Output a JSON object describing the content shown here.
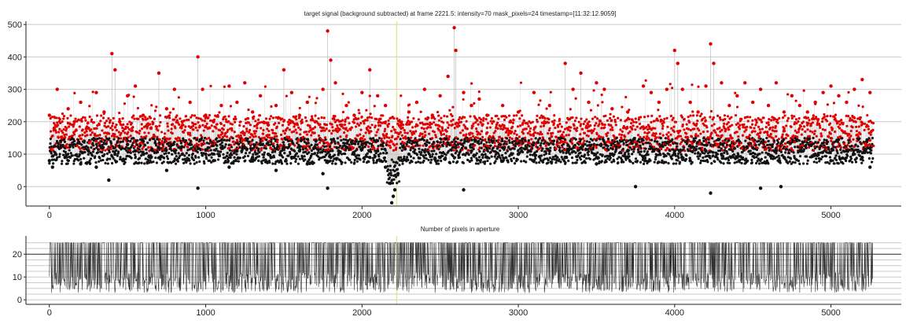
{
  "chart_data": [
    {
      "type": "scatter",
      "title": "target signal (background subtracted) at frame 2221.5: intensity=70 mask_pixels=24 timestamp=[11:32:12.9059]",
      "xlim": [
        -150,
        5450
      ],
      "ylim": [
        -60,
        510
      ],
      "xticks": [
        0,
        1000,
        2000,
        3000,
        4000,
        5000
      ],
      "yticks": [
        0,
        100,
        200,
        300,
        400,
        500
      ],
      "grid": "horizontal",
      "cursor_x": 2221.5,
      "colors": {
        "line": "#c4c4c4",
        "black_points": "#111111",
        "red_points": "#e00000",
        "cursor": "#e6e08a"
      },
      "series": [
        {
          "marker_color": "black",
          "points": [
            [
              0,
              80
            ],
            [
              20,
              60
            ],
            [
              40,
              100
            ],
            [
              70,
              120
            ],
            [
              100,
              90
            ],
            [
              150,
              130
            ],
            [
              200,
              70
            ],
            [
              250,
              110
            ],
            [
              300,
              60
            ],
            [
              340,
              120
            ],
            [
              380,
              20
            ],
            [
              420,
              100
            ],
            [
              470,
              80
            ],
            [
              500,
              130
            ],
            [
              550,
              110
            ],
            [
              600,
              140
            ],
            [
              650,
              90
            ],
            [
              700,
              120
            ],
            [
              750,
              50
            ],
            [
              800,
              110
            ],
            [
              850,
              100
            ],
            [
              900,
              130
            ],
            [
              950,
              -5
            ],
            [
              1000,
              100
            ],
            [
              1050,
              80
            ],
            [
              1100,
              120
            ],
            [
              1150,
              60
            ],
            [
              1200,
              110
            ],
            [
              1250,
              120
            ],
            [
              1300,
              90
            ],
            [
              1350,
              130
            ],
            [
              1400,
              100
            ],
            [
              1450,
              50
            ],
            [
              1500,
              120
            ],
            [
              1550,
              90
            ],
            [
              1600,
              110
            ],
            [
              1650,
              70
            ],
            [
              1700,
              120
            ],
            [
              1750,
              40
            ],
            [
              1780,
              -5
            ],
            [
              1800,
              90
            ],
            [
              1850,
              110
            ],
            [
              1900,
              120
            ],
            [
              1950,
              100
            ],
            [
              2000,
              130
            ],
            [
              2050,
              90
            ],
            [
              2100,
              110
            ],
            [
              2150,
              60
            ],
            [
              2180,
              10
            ],
            [
              2190,
              -50
            ],
            [
              2200,
              -30
            ],
            [
              2210,
              -10
            ],
            [
              2230,
              40
            ],
            [
              2260,
              80
            ],
            [
              2300,
              100
            ],
            [
              2400,
              110
            ],
            [
              2500,
              90
            ],
            [
              2600,
              120
            ],
            [
              2650,
              -10
            ],
            [
              2700,
              110
            ],
            [
              2800,
              90
            ],
            [
              2900,
              120
            ],
            [
              3000,
              100
            ],
            [
              3100,
              80
            ],
            [
              3200,
              110
            ],
            [
              3300,
              90
            ],
            [
              3400,
              120
            ],
            [
              3500,
              70
            ],
            [
              3600,
              100
            ],
            [
              3700,
              110
            ],
            [
              3750,
              0
            ],
            [
              3800,
              90
            ],
            [
              3900,
              110
            ],
            [
              4000,
              100
            ],
            [
              4100,
              80
            ],
            [
              4200,
              110
            ],
            [
              4230,
              -20
            ],
            [
              4300,
              100
            ],
            [
              4400,
              90
            ],
            [
              4500,
              120
            ],
            [
              4550,
              -5
            ],
            [
              4600,
              100
            ],
            [
              4650,
              110
            ],
            [
              4680,
              0
            ],
            [
              4700,
              90
            ],
            [
              4800,
              110
            ],
            [
              4900,
              100
            ],
            [
              5000,
              80
            ],
            [
              5100,
              110
            ],
            [
              5200,
              90
            ],
            [
              5250,
              60
            ]
          ]
        },
        {
          "marker_color": "red",
          "points": [
            [
              0,
              220
            ],
            [
              30,
              180
            ],
            [
              50,
              300
            ],
            [
              80,
              150
            ],
            [
              120,
              240
            ],
            [
              160,
              200
            ],
            [
              200,
              260
            ],
            [
              250,
              180
            ],
            [
              300,
              290
            ],
            [
              350,
              230
            ],
            [
              400,
              410
            ],
            [
              420,
              360
            ],
            [
              450,
              200
            ],
            [
              500,
              280
            ],
            [
              550,
              310
            ],
            [
              600,
              220
            ],
            [
              650,
              180
            ],
            [
              700,
              350
            ],
            [
              750,
              240
            ],
            [
              800,
              300
            ],
            [
              850,
              200
            ],
            [
              900,
              260
            ],
            [
              950,
              400
            ],
            [
              980,
              300
            ],
            [
              1000,
              220
            ],
            [
              1050,
              200
            ],
            [
              1100,
              250
            ],
            [
              1150,
              310
            ],
            [
              1200,
              260
            ],
            [
              1250,
              320
            ],
            [
              1300,
              230
            ],
            [
              1350,
              280
            ],
            [
              1400,
              190
            ],
            [
              1450,
              250
            ],
            [
              1500,
              360
            ],
            [
              1550,
              290
            ],
            [
              1600,
              220
            ],
            [
              1650,
              260
            ],
            [
              1700,
              200
            ],
            [
              1750,
              300
            ],
            [
              1780,
              480
            ],
            [
              1800,
              390
            ],
            [
              1830,
              320
            ],
            [
              1900,
              250
            ],
            [
              1950,
              220
            ],
            [
              2000,
              290
            ],
            [
              2050,
              360
            ],
            [
              2100,
              280
            ],
            [
              2150,
              250
            ],
            [
              2250,
              190
            ],
            [
              2300,
              230
            ],
            [
              2350,
              260
            ],
            [
              2400,
              300
            ],
            [
              2450,
              220
            ],
            [
              2500,
              280
            ],
            [
              2550,
              340
            ],
            [
              2590,
              490
            ],
            [
              2600,
              420
            ],
            [
              2650,
              290
            ],
            [
              2700,
              250
            ],
            [
              2750,
              270
            ],
            [
              2800,
              220
            ],
            [
              2900,
              250
            ],
            [
              2950,
              200
            ],
            [
              3000,
              230
            ],
            [
              3100,
              290
            ],
            [
              3200,
              250
            ],
            [
              3300,
              380
            ],
            [
              3350,
              300
            ],
            [
              3400,
              350
            ],
            [
              3450,
              260
            ],
            [
              3500,
              320
            ],
            [
              3550,
              300
            ],
            [
              3600,
              240
            ],
            [
              3700,
              230
            ],
            [
              3800,
              310
            ],
            [
              3850,
              290
            ],
            [
              3900,
              260
            ],
            [
              3950,
              300
            ],
            [
              4000,
              420
            ],
            [
              4020,
              380
            ],
            [
              4050,
              300
            ],
            [
              4100,
              260
            ],
            [
              4150,
              230
            ],
            [
              4200,
              310
            ],
            [
              4230,
              440
            ],
            [
              4250,
              380
            ],
            [
              4300,
              320
            ],
            [
              4350,
              250
            ],
            [
              4400,
              280
            ],
            [
              4450,
              320
            ],
            [
              4500,
              260
            ],
            [
              4550,
              300
            ],
            [
              4600,
              250
            ],
            [
              4650,
              320
            ],
            [
              4700,
              230
            ],
            [
              4750,
              280
            ],
            [
              4800,
              250
            ],
            [
              4850,
              230
            ],
            [
              4900,
              260
            ],
            [
              4950,
              290
            ],
            [
              5000,
              310
            ],
            [
              5050,
              280
            ],
            [
              5100,
              260
            ],
            [
              5150,
              300
            ],
            [
              5200,
              330
            ],
            [
              5250,
              290
            ]
          ]
        }
      ]
    },
    {
      "type": "line",
      "title": "Number of pixels in aperture",
      "xlim": [
        -150,
        5450
      ],
      "ylim": [
        -2,
        28
      ],
      "xticks": [
        0,
        1000,
        2000,
        3000,
        4000,
        5000
      ],
      "yticks": [
        0,
        10,
        20
      ],
      "grid": "horizontal",
      "cursor_x": 2221.5,
      "colors": {
        "line": "#333333",
        "cursor": "#e6e08a"
      },
      "range": [
        3,
        25
      ],
      "x_range": [
        0,
        5270
      ]
    }
  ]
}
